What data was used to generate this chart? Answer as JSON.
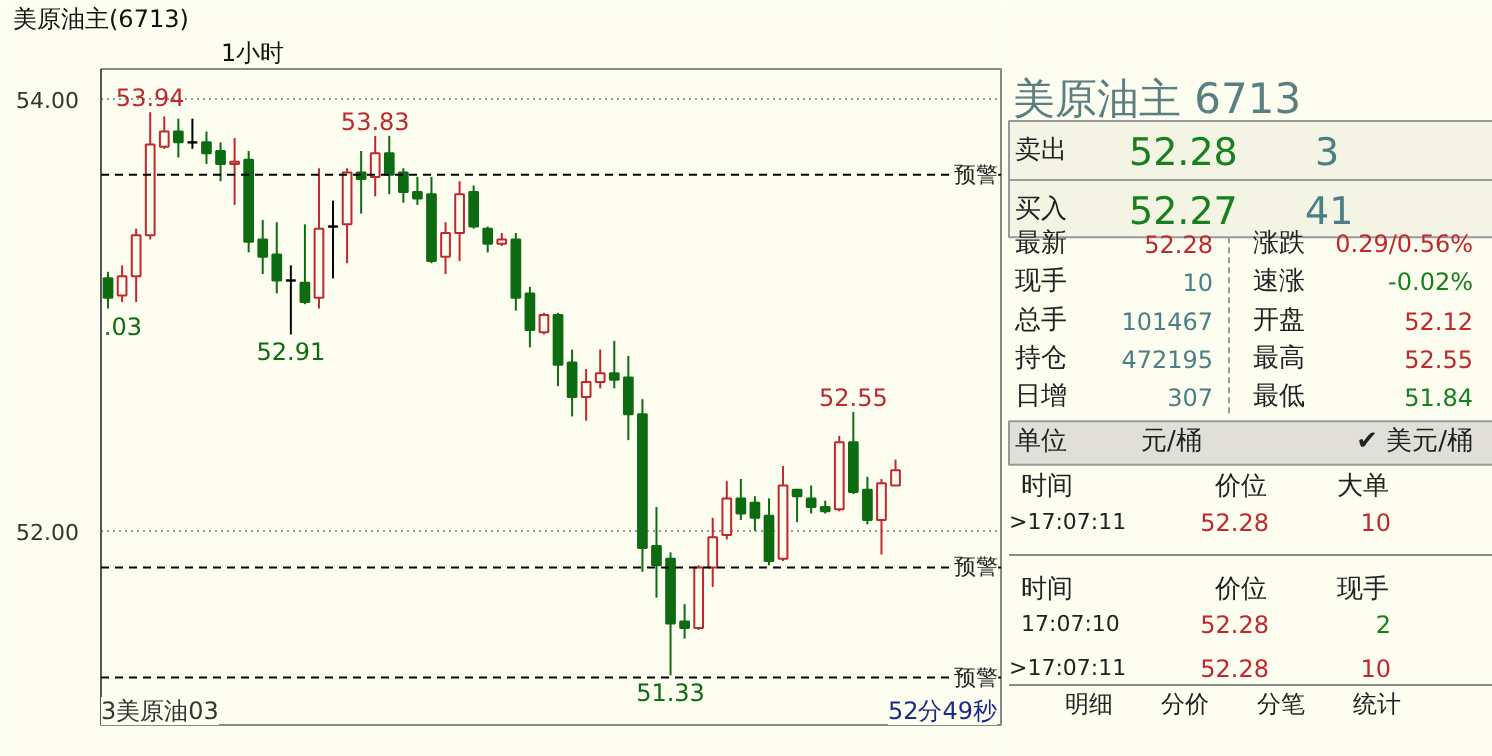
{
  "chart_data": [
    {
      "type": "candlestick",
      "title": "美原油主(6713)",
      "subtitle": "1小时",
      "categories": [
        null,
        null,
        null,
        null,
        null,
        null,
        null,
        null,
        null,
        null,
        null,
        null,
        null,
        null,
        null,
        null,
        null,
        null,
        null,
        null,
        null,
        null,
        null,
        null,
        null,
        null,
        null,
        null,
        null,
        null,
        null,
        null,
        null,
        null,
        null,
        null,
        null,
        null,
        null,
        null,
        null,
        null,
        null,
        null,
        null,
        null,
        null,
        null,
        null,
        null,
        null,
        null,
        null,
        null,
        null,
        null,
        null
      ],
      "ohlc": [
        [
          53.17,
          53.2,
          53.03,
          53.08
        ],
        [
          53.09,
          53.23,
          53.06,
          53.18
        ],
        [
          53.18,
          53.4,
          53.06,
          53.37
        ],
        [
          53.37,
          53.94,
          53.35,
          53.79
        ],
        [
          53.78,
          53.92,
          53.77,
          53.85
        ],
        [
          53.85,
          53.91,
          53.73,
          53.8
        ],
        [
          53.8,
          53.91,
          53.77,
          53.8
        ],
        [
          53.8,
          53.85,
          53.7,
          53.75
        ],
        [
          53.76,
          53.8,
          53.62,
          53.7
        ],
        [
          53.7,
          53.82,
          53.51,
          53.71
        ],
        [
          53.72,
          53.76,
          53.29,
          53.34
        ],
        [
          53.35,
          53.44,
          53.19,
          53.27
        ],
        [
          53.28,
          53.43,
          53.1,
          53.16
        ],
        [
          53.16,
          53.23,
          52.91,
          53.16
        ],
        [
          53.15,
          53.42,
          53.05,
          53.06
        ],
        [
          53.08,
          53.68,
          53.03,
          53.4
        ],
        [
          53.41,
          53.53,
          53.17,
          53.41
        ],
        [
          53.42,
          53.68,
          53.24,
          53.66
        ],
        [
          53.66,
          53.76,
          53.47,
          53.63
        ],
        [
          53.64,
          53.83,
          53.55,
          53.75
        ],
        [
          53.75,
          53.83,
          53.56,
          53.65
        ],
        [
          53.66,
          53.68,
          53.52,
          53.57
        ],
        [
          53.57,
          53.64,
          53.51,
          53.54
        ],
        [
          53.56,
          53.64,
          53.24,
          53.25
        ],
        [
          53.27,
          53.43,
          53.19,
          53.38
        ],
        [
          53.38,
          53.62,
          53.25,
          53.56
        ],
        [
          53.57,
          53.6,
          53.4,
          53.41
        ],
        [
          53.4,
          53.41,
          53.29,
          53.33
        ],
        [
          53.33,
          53.38,
          53.32,
          53.35
        ],
        [
          53.35,
          53.38,
          53.02,
          53.08
        ],
        [
          53.1,
          53.13,
          52.85,
          52.93
        ],
        [
          52.92,
          53.01,
          52.91,
          53.0
        ],
        [
          53.0,
          53.01,
          52.67,
          52.77
        ],
        [
          52.78,
          52.84,
          52.53,
          52.62
        ],
        [
          52.62,
          52.75,
          52.51,
          52.69
        ],
        [
          52.69,
          52.84,
          52.66,
          52.73
        ],
        [
          52.73,
          52.88,
          52.66,
          52.7
        ],
        [
          52.71,
          52.81,
          52.42,
          52.54
        ],
        [
          52.54,
          52.61,
          51.81,
          51.92
        ],
        [
          51.93,
          52.11,
          51.69,
          51.84
        ],
        [
          51.87,
          51.9,
          51.33,
          51.57
        ],
        [
          51.58,
          51.66,
          51.5,
          51.55
        ],
        [
          51.55,
          51.84,
          51.54,
          51.83
        ],
        [
          51.83,
          52.06,
          51.74,
          51.97
        ],
        [
          51.98,
          52.23,
          51.96,
          52.15
        ],
        [
          52.15,
          52.24,
          52.05,
          52.08
        ],
        [
          52.13,
          52.16,
          52.0,
          52.06
        ],
        [
          52.07,
          52.15,
          51.84,
          51.86
        ],
        [
          51.87,
          52.3,
          51.86,
          52.21
        ],
        [
          52.19,
          52.19,
          52.04,
          52.16
        ],
        [
          52.15,
          52.21,
          52.08,
          52.11
        ],
        [
          52.11,
          52.14,
          52.08,
          52.09
        ],
        [
          52.1,
          52.44,
          52.09,
          52.41
        ],
        [
          52.41,
          52.55,
          52.17,
          52.18
        ],
        [
          52.19,
          52.25,
          52.03,
          52.05
        ],
        [
          52.05,
          52.24,
          51.89,
          52.22
        ],
        [
          52.21,
          52.33,
          52.21,
          52.28
        ]
      ],
      "ylim": [
        51.1,
        54.14
      ],
      "yticks": [
        {
          "value": 52,
          "label": "52.00"
        },
        {
          "value": 54,
          "label": "54.00"
        }
      ],
      "grid": "y",
      "tick_labels": "y",
      "ref_lines": [
        {
          "axis": "y",
          "value": 53.65,
          "label": "预警",
          "line_style": "dashed"
        },
        {
          "axis": "y",
          "value": 51.83,
          "label": "预警",
          "line_style": "dashed"
        },
        {
          "axis": "y",
          "value": 51.32,
          "label": "预警",
          "line_style": "dashed"
        }
      ],
      "annotations": [
        {
          "text": "53.94",
          "y": 53.94
        },
        {
          "text": "53.83",
          "y": 53.83
        },
        {
          "text": "52.91",
          "y": 52.91
        },
        {
          "text": "52.55",
          "y": 52.55
        },
        {
          "text": "51.33",
          "y": 51.33
        },
        {
          "text": ".03",
          "y": 53.03
        },
        "3美原油03",
        "52分49秒"
      ]
    },
    {
      "type": "other",
      "title": "美原油主  6713",
      "annotations": [
        "卖出",
        "52.28",
        "3",
        "买入",
        "52.27",
        "41",
        "最新",
        "52.28",
        "涨跌",
        "0.29/0.56%",
        "现手",
        "10",
        "速涨",
        "-0.02%",
        "总手",
        "101467",
        "开盘",
        "52.12",
        "持仓",
        "472195",
        "最高",
        "52.55",
        "日增",
        "307",
        "最低",
        "51.84",
        "单位",
        "元/桶",
        "✔ 美元/桶",
        "时间",
        "价位",
        "大单",
        ">17:07:11",
        "52.28",
        "10",
        "时间",
        "价位",
        "现手",
        "17:07:10",
        "52.28",
        "2",
        ">17:07:11",
        "52.28",
        "10",
        "明细",
        "分价",
        "分笔",
        "统计"
      ]
    }
  ]
}
